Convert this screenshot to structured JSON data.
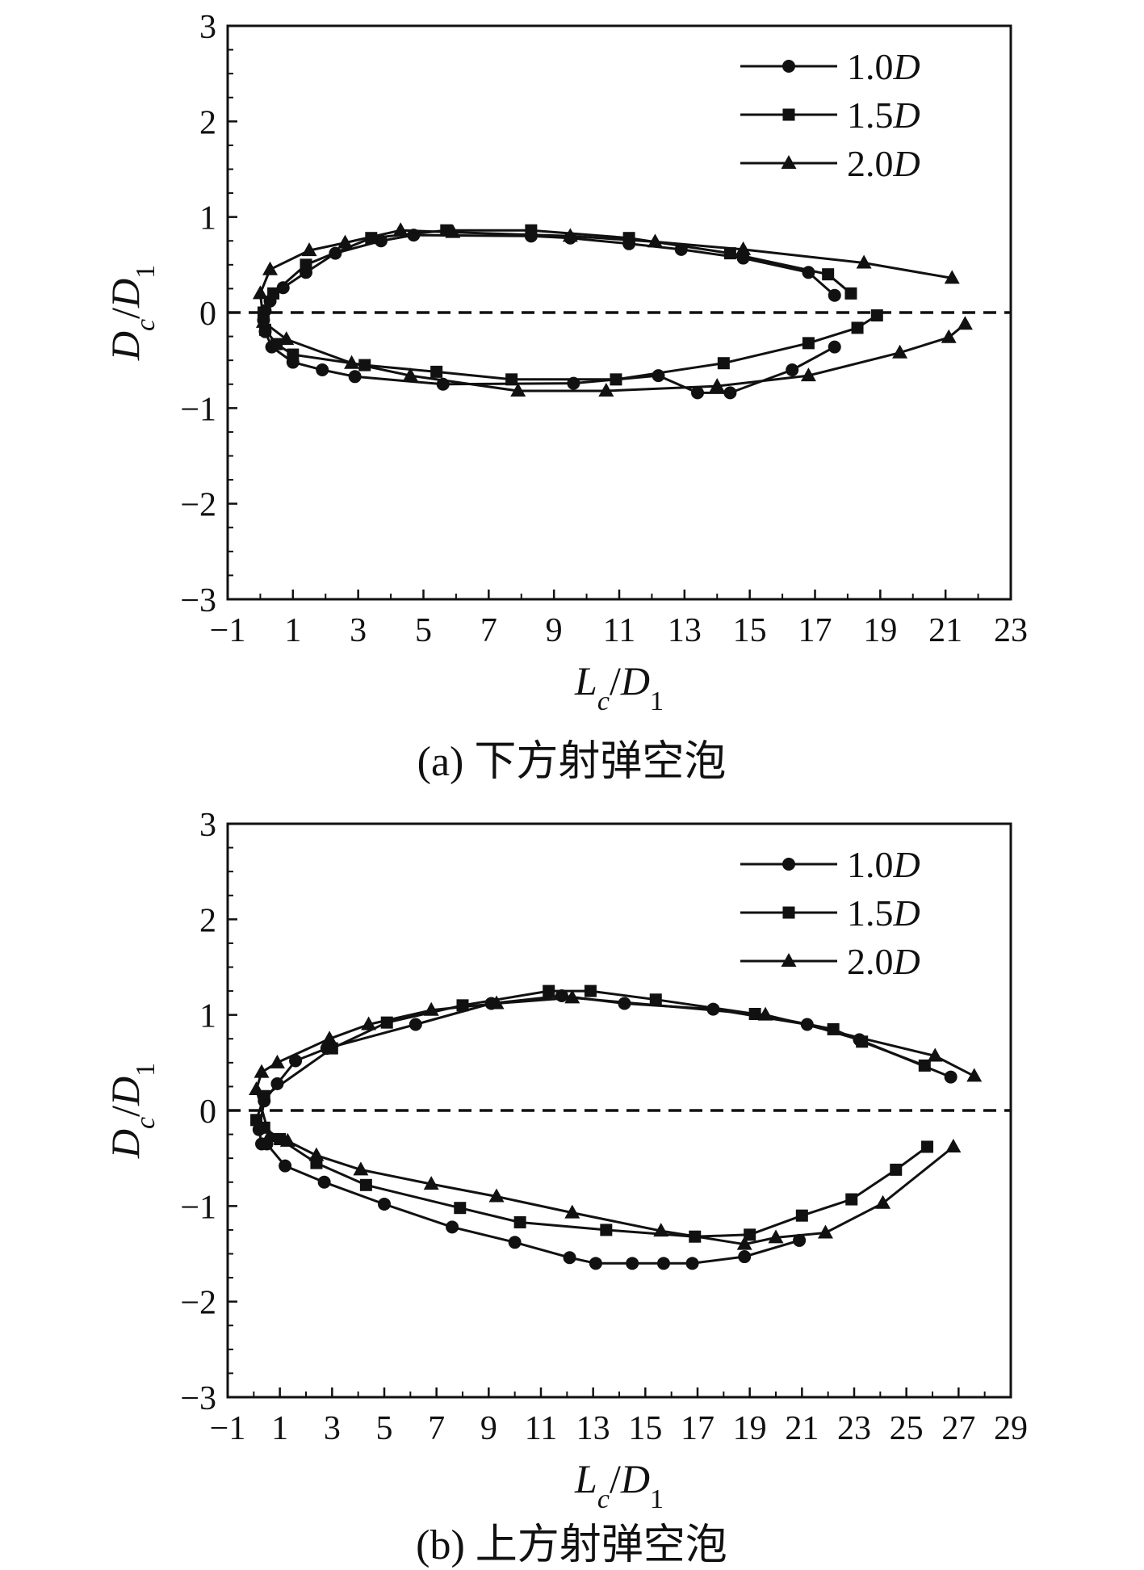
{
  "chart_data": [
    {
      "type": "line",
      "caption": "(a) 下方射弹空泡",
      "xlabel": "L_c/D_1",
      "ylabel": "D_c/D_1",
      "xlim": [
        -1,
        23
      ],
      "ylim": [
        -3,
        3
      ],
      "xticks": [
        -1,
        1,
        3,
        5,
        7,
        9,
        11,
        13,
        15,
        17,
        19,
        21,
        23
      ],
      "yticks": [
        -3,
        -2,
        -1,
        0,
        1,
        2,
        3
      ],
      "reference_line": {
        "y": 0,
        "style": "dashed"
      },
      "legend_position": "top-right",
      "series": [
        {
          "name": "1.0D",
          "marker": "circle",
          "x": [
            17.6,
            16.8,
            14.8,
            12.9,
            11.3,
            9.5,
            8.3,
            4.7,
            3.7,
            2.3,
            1.4,
            0.7,
            0.3,
            0.15,
            0.1,
            0.15,
            0.35,
            1.0,
            1.9,
            2.9,
            5.6,
            9.6,
            12.2,
            13.4,
            14.4,
            16.3,
            17.6
          ],
          "y": [
            0.18,
            0.42,
            0.57,
            0.66,
            0.72,
            0.78,
            0.8,
            0.81,
            0.75,
            0.62,
            0.42,
            0.26,
            0.12,
            0.02,
            -0.08,
            -0.2,
            -0.36,
            -0.52,
            -0.6,
            -0.67,
            -0.75,
            -0.74,
            -0.66,
            -0.84,
            -0.84,
            -0.6,
            -0.36
          ]
        },
        {
          "name": "1.5D",
          "marker": "square",
          "x": [
            18.1,
            17.4,
            14.4,
            11.3,
            8.3,
            5.7,
            3.4,
            1.4,
            0.4,
            0.1,
            0.15,
            0.5,
            1.0,
            3.2,
            5.4,
            7.7,
            10.9,
            14.2,
            16.8,
            18.3,
            18.9
          ],
          "y": [
            0.2,
            0.4,
            0.62,
            0.78,
            0.86,
            0.86,
            0.78,
            0.5,
            0.2,
            0.0,
            -0.18,
            -0.33,
            -0.44,
            -0.55,
            -0.62,
            -0.7,
            -0.7,
            -0.53,
            -0.32,
            -0.16,
            -0.03
          ],
          "note": ""
        },
        {
          "name": "2.0D",
          "marker": "triangle",
          "x": [
            21.2,
            18.5,
            14.8,
            12.1,
            9.5,
            5.9,
            4.3,
            2.6,
            1.5,
            0.3,
            0.0,
            0.1,
            0.8,
            2.8,
            4.6,
            7.9,
            10.6,
            14.0,
            16.8,
            19.6,
            21.1,
            21.6
          ],
          "y": [
            0.36,
            0.52,
            0.66,
            0.74,
            0.8,
            0.84,
            0.86,
            0.73,
            0.65,
            0.45,
            0.2,
            -0.1,
            -0.28,
            -0.53,
            -0.66,
            -0.82,
            -0.82,
            -0.77,
            -0.66,
            -0.42,
            -0.26,
            -0.12
          ]
        }
      ]
    },
    {
      "type": "line",
      "caption": "(b) 上方射弹空泡",
      "xlabel": "L_c/D_1",
      "ylabel": "D_c/D_1",
      "xlim": [
        -1,
        29
      ],
      "ylim": [
        -3,
        3
      ],
      "xticks": [
        -1,
        1,
        3,
        5,
        7,
        9,
        11,
        13,
        15,
        17,
        19,
        21,
        23,
        25,
        27,
        29
      ],
      "yticks": [
        -3,
        -2,
        -1,
        0,
        1,
        2,
        3
      ],
      "reference_line": {
        "y": 0,
        "style": "dashed"
      },
      "legend_position": "top-right",
      "series": [
        {
          "name": "1.0D",
          "marker": "circle",
          "x": [
            26.7,
            23.2,
            21.2,
            17.6,
            14.2,
            11.8,
            9.1,
            6.2,
            2.8,
            1.6,
            0.9,
            0.4,
            0.2,
            0.3,
            0.5,
            1.2,
            2.7,
            5.0,
            7.6,
            10.0,
            12.1,
            13.1,
            14.5,
            15.7,
            16.8,
            18.8,
            20.9
          ],
          "y": [
            0.35,
            0.74,
            0.9,
            1.06,
            1.12,
            1.2,
            1.12,
            0.9,
            0.65,
            0.52,
            0.28,
            0.1,
            -0.2,
            -0.35,
            -0.35,
            -0.58,
            -0.75,
            -0.98,
            -1.22,
            -1.38,
            -1.54,
            -1.6,
            -1.6,
            -1.6,
            -1.6,
            -1.53,
            -1.36
          ]
        },
        {
          "name": "1.5D",
          "marker": "square",
          "x": [
            25.7,
            23.3,
            22.2,
            19.2,
            15.4,
            12.9,
            11.3,
            8.0,
            5.1,
            3.0,
            0.4,
            0.1,
            0.4,
            1.0,
            2.4,
            4.3,
            7.9,
            10.2,
            13.5,
            16.9,
            19.0,
            21.0,
            22.9,
            24.6,
            25.8
          ],
          "y": [
            0.47,
            0.72,
            0.85,
            1.01,
            1.16,
            1.25,
            1.25,
            1.1,
            0.92,
            0.65,
            0.15,
            -0.1,
            -0.18,
            -0.3,
            -0.55,
            -0.78,
            -1.02,
            -1.17,
            -1.25,
            -1.32,
            -1.3,
            -1.1,
            -0.93,
            -0.62,
            -0.38
          ]
        },
        {
          "name": "2.0D",
          "marker": "triangle",
          "x": [
            27.6,
            26.1,
            19.6,
            12.2,
            9.3,
            6.8,
            4.4,
            2.9,
            0.9,
            0.3,
            0.1,
            0.6,
            1.3,
            2.4,
            4.1,
            6.8,
            9.3,
            12.2,
            15.6,
            18.8,
            20.0,
            21.9,
            24.1,
            26.8
          ],
          "y": [
            0.36,
            0.57,
            1.0,
            1.18,
            1.12,
            1.05,
            0.9,
            0.75,
            0.5,
            0.4,
            0.22,
            -0.27,
            -0.32,
            -0.47,
            -0.62,
            -0.77,
            -0.9,
            -1.07,
            -1.26,
            -1.4,
            -1.33,
            -1.28,
            -0.97,
            -0.38
          ]
        }
      ]
    }
  ]
}
